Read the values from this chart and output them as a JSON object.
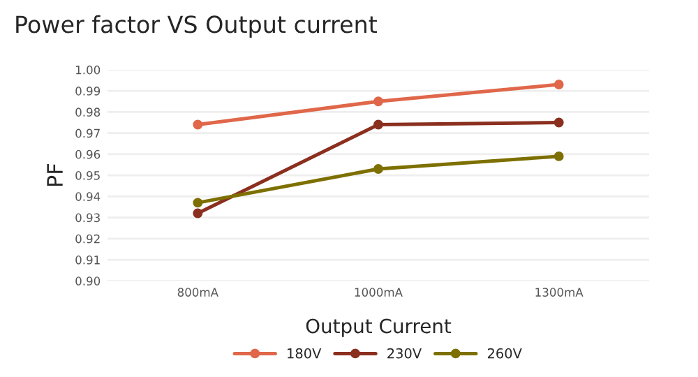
{
  "chart_data": {
    "type": "line",
    "title": "Power factor VS Output current",
    "xlabel": "Output Current",
    "ylabel": "PF",
    "categories": [
      "800mA",
      "1000mA",
      "1300mA"
    ],
    "series": [
      {
        "name": "180V",
        "color": "#e0674a",
        "values": [
          0.974,
          0.985,
          0.993
        ]
      },
      {
        "name": "230V",
        "color": "#8b2f1f",
        "values": [
          0.932,
          0.974,
          0.975
        ]
      },
      {
        "name": "260V",
        "color": "#7d7000",
        "values": [
          0.937,
          0.953,
          0.959
        ]
      }
    ],
    "ylim": [
      0.9,
      1.0
    ],
    "yticks": [
      {
        "value": 0.9,
        "label": "0.90"
      },
      {
        "value": 0.91,
        "label": "0.91"
      },
      {
        "value": 0.92,
        "label": "0.92"
      },
      {
        "value": 0.93,
        "label": "0.93"
      },
      {
        "value": 0.94,
        "label": "0.94"
      },
      {
        "value": 0.95,
        "label": "0.95"
      },
      {
        "value": 0.96,
        "label": "0.96"
      },
      {
        "value": 0.97,
        "label": "0.97"
      },
      {
        "value": 0.98,
        "label": "0.98"
      },
      {
        "value": 0.99,
        "label": "0.99"
      },
      {
        "value": 1.0,
        "label": "1.00"
      }
    ],
    "grid": "y",
    "legend": "bottom",
    "marker": "circle",
    "line_style": "solid"
  }
}
